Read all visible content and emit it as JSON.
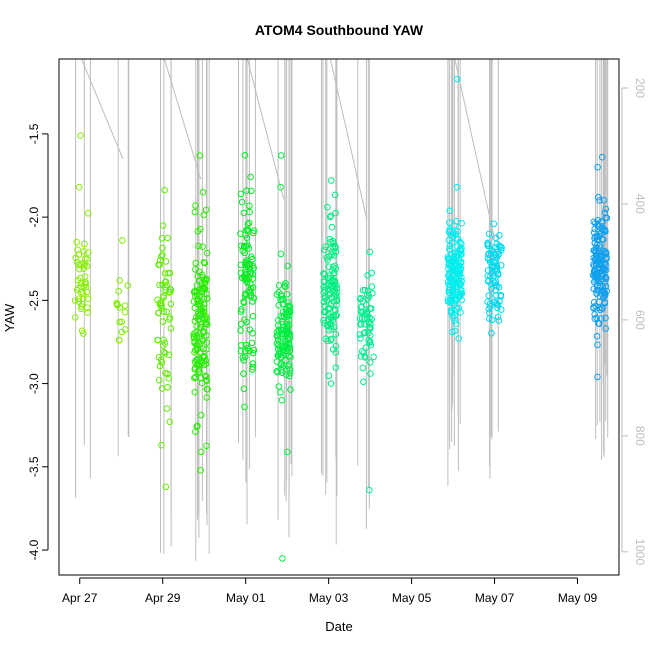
{
  "chart_data": {
    "type": "scatter",
    "title": "ATOM4 Southbound YAW",
    "xlabel": "Date",
    "ylabel": "YAW",
    "x_range": [
      "2023-04-26T12:00",
      "2023-05-10T00:00"
    ],
    "ylim": [
      -4.15,
      -1.05
    ],
    "y_ticks": [
      -4.0,
      -3.5,
      -3.0,
      -2.5,
      -2.0,
      -1.5
    ],
    "x_ticks": [
      {
        "date": "2023-04-27",
        "label": "Apr 27"
      },
      {
        "date": "2023-04-29",
        "label": "Apr 29"
      },
      {
        "date": "2023-05-01",
        "label": "May 01"
      },
      {
        "date": "2023-05-03",
        "label": "May 03"
      },
      {
        "date": "2023-05-05",
        "label": "May 05"
      },
      {
        "date": "2023-05-07",
        "label": "May 07"
      },
      {
        "date": "2023-05-09",
        "label": "May 09"
      }
    ],
    "secondary_axis": {
      "side": "right",
      "color": "#bebebe",
      "range": [
        150,
        1040
      ],
      "ticks": [
        200,
        400,
        600,
        800,
        1000
      ],
      "series_color": "#bebebe"
    },
    "color_gradient": "time-ordered, yellow-green through green and cyan to blue",
    "clusters": [
      {
        "date": "2023-04-27T01:00",
        "center": -2.4,
        "spread": 0.16,
        "count": 45,
        "color": "#88ee00",
        "outliers": [
          -1.51,
          -1.82,
          -2.7
        ]
      },
      {
        "date": "2023-04-28T01:00",
        "center": -2.6,
        "spread": 0.08,
        "count": 14,
        "color": "#80ee00",
        "outliers": [
          -2.14,
          -2.38,
          -2.74
        ]
      },
      {
        "date": "2023-04-29T01:00",
        "center": -2.55,
        "spread": 0.28,
        "count": 60,
        "color": "#60ee00",
        "outliers": [
          -2.05,
          -3.37,
          -3.62,
          -3.15
        ]
      },
      {
        "date": "2023-04-29T22:00",
        "center": -2.65,
        "spread": 0.25,
        "count": 140,
        "color": "#28ee00",
        "outliers": [
          -1.63,
          -1.85,
          -3.19,
          -3.41
        ]
      },
      {
        "date": "2023-05-01T01:00",
        "center": -2.4,
        "spread": 0.24,
        "count": 95,
        "color": "#00ee20",
        "outliers": [
          -1.97,
          -3.14,
          -2.86
        ]
      },
      {
        "date": "2023-05-01T22:00",
        "center": -2.7,
        "spread": 0.16,
        "count": 120,
        "color": "#00ee40",
        "outliers": [
          -1.63,
          -1.82,
          -3.1,
          -3.41,
          -4.05
        ]
      },
      {
        "date": "2023-05-03T01:00",
        "center": -2.45,
        "spread": 0.19,
        "count": 110,
        "color": "#00ee80",
        "outliers": [
          -1.78,
          -1.94,
          -3.0
        ]
      },
      {
        "date": "2023-05-03T22:00",
        "center": -2.65,
        "spread": 0.14,
        "count": 60,
        "color": "#00ee90",
        "outliers": [
          -2.35,
          -3.64
        ]
      },
      {
        "date": "2023-05-06T01:00",
        "center": -2.35,
        "spread": 0.16,
        "count": 160,
        "color": "#00eeee",
        "outliers": [
          -1.17,
          -1.82,
          -2.73
        ]
      },
      {
        "date": "2023-05-07T00:00",
        "center": -2.35,
        "spread": 0.14,
        "count": 80,
        "color": "#00d8ee",
        "outliers": [
          -2.04,
          -2.6
        ]
      },
      {
        "date": "2023-05-09T13:00",
        "center": -2.3,
        "spread": 0.17,
        "count": 160,
        "color": "#10a0ee",
        "outliers": [
          -1.64,
          -1.7,
          -1.88,
          -2.64,
          -2.96
        ]
      }
    ],
    "grid": false,
    "legend": "none"
  }
}
